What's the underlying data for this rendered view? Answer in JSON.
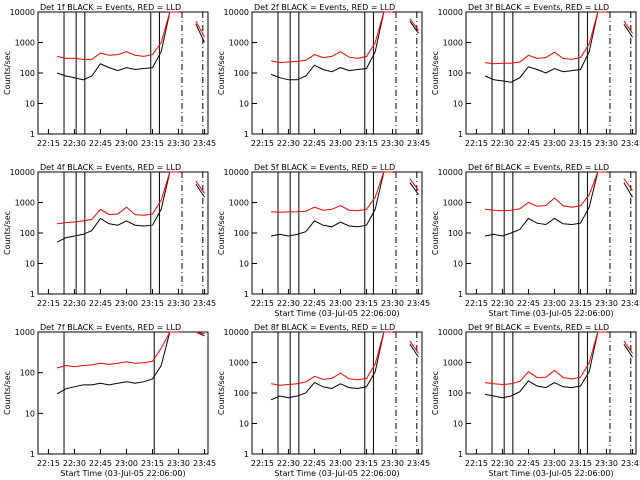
{
  "figure": {
    "type": "multi-panel line plot",
    "rows": 3,
    "cols": 3,
    "x_tick_labels": [
      "22:15",
      "22:30",
      "22:45",
      "23:00",
      "23:15",
      "23:30",
      "23:45"
    ],
    "y_tick_labels": [
      "1",
      "10",
      "100",
      "1000",
      "10000"
    ],
    "ylabel": "Counts/sec",
    "xlabel": "Start Time (03-Jul-05 22:06:00)",
    "colors": {
      "events": "#000000",
      "lld": "#ff0000",
      "background": "#ffffff"
    }
  },
  "chart_data": [
    {
      "type": "line",
      "title": "Det  1f BLACK = Events, RED = LLD",
      "xlabel": "",
      "ylabel": "Counts/sec",
      "x": [
        "22:15",
        "22:20",
        "22:25",
        "22:30",
        "22:35",
        "22:40",
        "22:45",
        "22:50",
        "22:55",
        "23:00",
        "23:05",
        "23:10",
        "23:15",
        "23:20",
        "23:25",
        "23:30",
        "23:35",
        "23:40",
        "23:45"
      ],
      "ylim": [
        1,
        10000
      ],
      "yscale": "log",
      "series": [
        {
          "values": [
            null,
            100,
            80,
            70,
            60,
            80,
            200,
            150,
            120,
            150,
            130,
            140,
            150,
            500,
            10000,
            10000,
            null,
            4000,
            1000
          ]
        },
        {
          "values": [
            null,
            350,
            300,
            300,
            280,
            280,
            450,
            380,
            400,
            500,
            380,
            350,
            400,
            1000,
            10000,
            10000,
            null,
            5000,
            1500
          ]
        }
      ],
      "vertical_lines": [
        "22:24",
        "22:31",
        "22:36",
        "23:14",
        "23:19",
        "23:32",
        "23:44"
      ]
    },
    {
      "type": "line",
      "title": "Det  2f BLACK = Events, RED = LLD",
      "xlabel": "",
      "ylabel": "Counts/sec",
      "x": [
        "22:15",
        "22:20",
        "22:25",
        "22:30",
        "22:35",
        "22:40",
        "22:45",
        "22:50",
        "22:55",
        "23:00",
        "23:05",
        "23:10",
        "23:15",
        "23:20",
        "23:25",
        "23:30",
        "23:35",
        "23:40",
        "23:45"
      ],
      "ylim": [
        1,
        10000
      ],
      "yscale": "log",
      "series": [
        {
          "values": [
            null,
            90,
            70,
            60,
            60,
            80,
            180,
            130,
            110,
            150,
            120,
            130,
            140,
            500,
            10000,
            10000,
            null,
            5000,
            2000
          ]
        },
        {
          "values": [
            null,
            250,
            220,
            230,
            240,
            260,
            400,
            320,
            350,
            500,
            330,
            300,
            350,
            1000,
            10000,
            10000,
            null,
            6000,
            2500
          ]
        }
      ],
      "vertical_lines": [
        "22:24",
        "22:31",
        "22:36",
        "23:14",
        "23:19",
        "23:32",
        "23:44"
      ]
    },
    {
      "type": "line",
      "title": "Det  3f BLACK = Events, RED = LLD",
      "xlabel": "",
      "ylabel": "Counts/sec",
      "x": [
        "22:15",
        "22:20",
        "22:25",
        "22:30",
        "22:35",
        "22:40",
        "22:45",
        "22:50",
        "22:55",
        "23:00",
        "23:05",
        "23:10",
        "23:15",
        "23:20",
        "23:25",
        "23:30",
        "23:35",
        "23:40",
        "23:45"
      ],
      "ylim": [
        1,
        10000
      ],
      "yscale": "log",
      "series": [
        {
          "values": [
            null,
            80,
            60,
            55,
            50,
            70,
            160,
            130,
            100,
            140,
            110,
            120,
            130,
            500,
            10000,
            10000,
            null,
            4000,
            1500
          ]
        },
        {
          "values": [
            null,
            220,
            200,
            210,
            210,
            230,
            380,
            300,
            320,
            480,
            300,
            280,
            320,
            900,
            10000,
            10000,
            null,
            5000,
            2000
          ]
        }
      ],
      "vertical_lines": [
        "22:24",
        "22:31",
        "22:36",
        "23:14",
        "23:19",
        "23:32",
        "23:44"
      ]
    },
    {
      "type": "line",
      "title": "Det  4f BLACK = Events, RED = LLD",
      "xlabel": "",
      "ylabel": "Counts/sec",
      "x": [
        "22:15",
        "22:20",
        "22:25",
        "22:30",
        "22:35",
        "22:40",
        "22:45",
        "22:50",
        "22:55",
        "23:00",
        "23:05",
        "23:10",
        "23:15",
        "23:20",
        "23:25",
        "23:30",
        "23:35",
        "23:40",
        "23:45"
      ],
      "ylim": [
        1,
        10000
      ],
      "yscale": "log",
      "series": [
        {
          "values": [
            null,
            50,
            70,
            80,
            90,
            120,
            300,
            200,
            180,
            250,
            180,
            170,
            180,
            600,
            10000,
            10000,
            null,
            4000,
            1500
          ]
        },
        {
          "values": [
            null,
            200,
            220,
            230,
            250,
            280,
            600,
            400,
            420,
            700,
            400,
            380,
            420,
            1200,
            10000,
            10000,
            null,
            5000,
            2000
          ]
        }
      ],
      "vertical_lines": [
        "22:24",
        "22:31",
        "22:36",
        "23:14",
        "23:19",
        "23:32",
        "23:44"
      ]
    },
    {
      "type": "line",
      "title": "Det  5f BLACK = Events, RED = LLD",
      "xlabel": "Start Time (03-Jul-05 22:06:00)",
      "ylabel": "Counts/sec",
      "x": [
        "22:15",
        "22:20",
        "22:25",
        "22:30",
        "22:35",
        "22:40",
        "22:45",
        "22:50",
        "22:55",
        "23:00",
        "23:05",
        "23:10",
        "23:15",
        "23:20",
        "23:25",
        "23:30",
        "23:35",
        "23:40",
        "23:45"
      ],
      "ylim": [
        1,
        10000
      ],
      "yscale": "log",
      "series": [
        {
          "values": [
            null,
            80,
            90,
            80,
            90,
            110,
            250,
            180,
            160,
            230,
            170,
            160,
            180,
            600,
            10000,
            10000,
            null,
            4500,
            1800
          ]
        },
        {
          "values": [
            null,
            500,
            480,
            490,
            500,
            520,
            700,
            560,
            600,
            800,
            560,
            540,
            600,
            1500,
            10000,
            10000,
            null,
            6000,
            2500
          ]
        }
      ],
      "vertical_lines": [
        "22:24",
        "22:31",
        "22:36",
        "23:14",
        "23:19",
        "23:32",
        "23:44"
      ]
    },
    {
      "type": "line",
      "title": "Det  6f BLACK = Events, RED = LLD",
      "xlabel": "Start Time (03-Jul-05 22:06:00)",
      "ylabel": "Counts/sec",
      "x": [
        "22:15",
        "22:20",
        "22:25",
        "22:30",
        "22:35",
        "22:40",
        "22:45",
        "22:50",
        "22:55",
        "23:00",
        "23:05",
        "23:10",
        "23:15",
        "23:20",
        "23:25",
        "23:30",
        "23:35",
        "23:40",
        "23:45"
      ],
      "ylim": [
        1,
        10000
      ],
      "yscale": "log",
      "series": [
        {
          "values": [
            null,
            80,
            90,
            80,
            100,
            130,
            300,
            210,
            190,
            300,
            200,
            190,
            210,
            700,
            10000,
            10000,
            null,
            4500,
            1500
          ]
        },
        {
          "values": [
            null,
            600,
            560,
            540,
            560,
            620,
            1000,
            750,
            800,
            1400,
            780,
            700,
            780,
            1800,
            10000,
            10000,
            null,
            6000,
            2500
          ]
        }
      ],
      "vertical_lines": [
        "22:24",
        "22:31",
        "22:36",
        "23:14",
        "23:19",
        "23:32",
        "23:44"
      ]
    },
    {
      "type": "line",
      "title": "Det  7f BLACK = Events, RED = LLD",
      "xlabel": "Start Time (03-Jul-05 22:06:00)",
      "ylabel": "Counts/sec",
      "x": [
        "22:15",
        "22:20",
        "22:25",
        "22:30",
        "22:35",
        "22:40",
        "22:45",
        "22:50",
        "22:55",
        "23:00",
        "23:05",
        "23:10",
        "23:15",
        "23:20",
        "23:25",
        "23:30",
        "23:35",
        "23:40",
        "23:45"
      ],
      "ylim": [
        1,
        1000
      ],
      "yscale": "log",
      "series": [
        {
          "values": [
            null,
            30,
            40,
            45,
            50,
            50,
            55,
            50,
            55,
            60,
            55,
            60,
            70,
            150,
            1000,
            1000,
            null,
            1000,
            800
          ]
        },
        {
          "values": [
            null,
            130,
            150,
            140,
            150,
            155,
            170,
            160,
            170,
            185,
            170,
            175,
            190,
            400,
            1000,
            1000,
            null,
            1000,
            900
          ]
        }
      ],
      "vertical_lines": [
        "22:24",
        "23:16"
      ]
    },
    {
      "type": "line",
      "title": "Det  8f BLACK = Events, RED = LLD",
      "xlabel": "Start Time (03-Jul-05 22:06:00)",
      "ylabel": "Counts/sec",
      "x": [
        "22:15",
        "22:20",
        "22:25",
        "22:30",
        "22:35",
        "22:40",
        "22:45",
        "22:50",
        "22:55",
        "23:00",
        "23:05",
        "23:10",
        "23:15",
        "23:20",
        "23:25",
        "23:30",
        "23:35",
        "23:40",
        "23:45"
      ],
      "ylim": [
        1,
        10000
      ],
      "yscale": "log",
      "series": [
        {
          "values": [
            null,
            60,
            80,
            70,
            80,
            100,
            220,
            160,
            140,
            200,
            150,
            140,
            160,
            500,
            10000,
            10000,
            null,
            4000,
            1500
          ]
        },
        {
          "values": [
            null,
            200,
            180,
            190,
            200,
            230,
            350,
            280,
            300,
            450,
            290,
            270,
            300,
            900,
            10000,
            10000,
            null,
            5000,
            2000
          ]
        }
      ],
      "vertical_lines": [
        "22:24",
        "22:31",
        "22:36",
        "23:14",
        "23:19",
        "23:32",
        "23:44"
      ]
    },
    {
      "type": "line",
      "title": "Det  9f BLACK = Events, RED = LLD",
      "xlabel": "Start Time (03-Jul-05 22:06:00)",
      "ylabel": "Counts/sec",
      "x": [
        "22:15",
        "22:20",
        "22:25",
        "22:30",
        "22:35",
        "22:40",
        "22:45",
        "22:50",
        "22:55",
        "23:00",
        "23:05",
        "23:10",
        "23:15",
        "23:20",
        "23:25",
        "23:30",
        "23:35",
        "23:40",
        "23:45"
      ],
      "ylim": [
        1,
        10000
      ],
      "yscale": "log",
      "series": [
        {
          "values": [
            null,
            90,
            80,
            70,
            80,
            110,
            250,
            170,
            150,
            220,
            160,
            150,
            170,
            500,
            10000,
            10000,
            null,
            4000,
            1500
          ]
        },
        {
          "values": [
            null,
            220,
            200,
            190,
            200,
            240,
            500,
            320,
            330,
            550,
            320,
            290,
            330,
            1000,
            10000,
            10000,
            null,
            5000,
            2000
          ]
        }
      ],
      "vertical_lines": [
        "22:24",
        "22:31",
        "22:36",
        "23:14",
        "23:19",
        "23:32",
        "23:44"
      ]
    }
  ]
}
